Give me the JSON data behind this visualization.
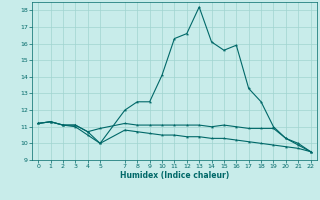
{
  "xlabel": "Humidex (Indice chaleur)",
  "bg_color": "#c8ecea",
  "grid_color": "#a0d4d0",
  "line_color": "#006868",
  "xlim": [
    -0.5,
    22.5
  ],
  "ylim": [
    9,
    18.5
  ],
  "yticks": [
    9,
    10,
    11,
    12,
    13,
    14,
    15,
    16,
    17,
    18
  ],
  "xticks": [
    0,
    1,
    2,
    3,
    4,
    5,
    7,
    8,
    9,
    10,
    11,
    12,
    13,
    14,
    15,
    16,
    17,
    18,
    19,
    20,
    21,
    22
  ],
  "line1_x": [
    0,
    1,
    2,
    3,
    4,
    5,
    7,
    8,
    9,
    10,
    11,
    12,
    13,
    14,
    15,
    16,
    17,
    18,
    19,
    20,
    21,
    22
  ],
  "line1_y": [
    11.2,
    11.3,
    11.1,
    11.1,
    10.7,
    10.0,
    12.0,
    12.5,
    12.5,
    14.1,
    16.3,
    16.6,
    18.2,
    16.1,
    15.6,
    15.9,
    13.3,
    12.5,
    11.0,
    10.3,
    9.9,
    9.5
  ],
  "line2_x": [
    0,
    1,
    2,
    3,
    4,
    5,
    7,
    8,
    9,
    10,
    11,
    12,
    13,
    14,
    15,
    16,
    17,
    18,
    19,
    20,
    21,
    22
  ],
  "line2_y": [
    11.2,
    11.3,
    11.1,
    11.1,
    10.7,
    10.9,
    11.2,
    11.1,
    11.1,
    11.1,
    11.1,
    11.1,
    11.1,
    11.0,
    11.1,
    11.0,
    10.9,
    10.9,
    10.9,
    10.3,
    10.0,
    9.5
  ],
  "line3_x": [
    0,
    1,
    2,
    3,
    4,
    5,
    7,
    8,
    9,
    10,
    11,
    12,
    13,
    14,
    15,
    16,
    17,
    18,
    19,
    20,
    21,
    22
  ],
  "line3_y": [
    11.2,
    11.3,
    11.1,
    11.0,
    10.5,
    10.0,
    10.8,
    10.7,
    10.6,
    10.5,
    10.5,
    10.4,
    10.4,
    10.3,
    10.3,
    10.2,
    10.1,
    10.0,
    9.9,
    9.8,
    9.7,
    9.5
  ]
}
